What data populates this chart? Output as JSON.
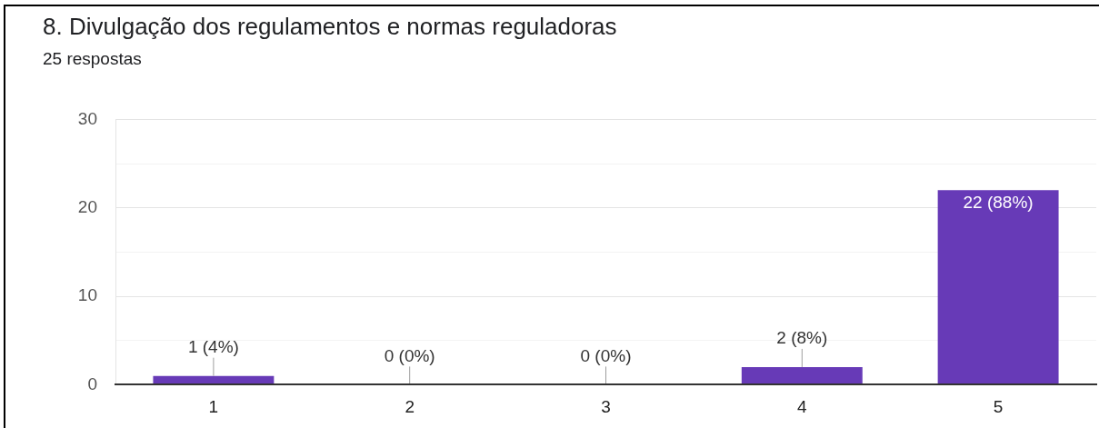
{
  "chart_data": {
    "type": "bar",
    "title": "8. Divulgação dos regulamentos e normas reguladoras",
    "subtitle": "25 respostas",
    "categories": [
      "1",
      "2",
      "3",
      "4",
      "5"
    ],
    "values": [
      1,
      0,
      0,
      2,
      22
    ],
    "value_labels": [
      "1 (4%)",
      "0 (0%)",
      "0 (0%)",
      "2 (8%)",
      "22 (88%)"
    ],
    "color": "#673ab7",
    "ylim": [
      0,
      30
    ],
    "yticks": [
      0,
      {
        "value": 5,
        "label": null
      },
      10,
      {
        "value": 15,
        "label": null
      },
      20,
      {
        "value": 25,
        "label": null
      },
      30
    ],
    "grid": "y"
  }
}
